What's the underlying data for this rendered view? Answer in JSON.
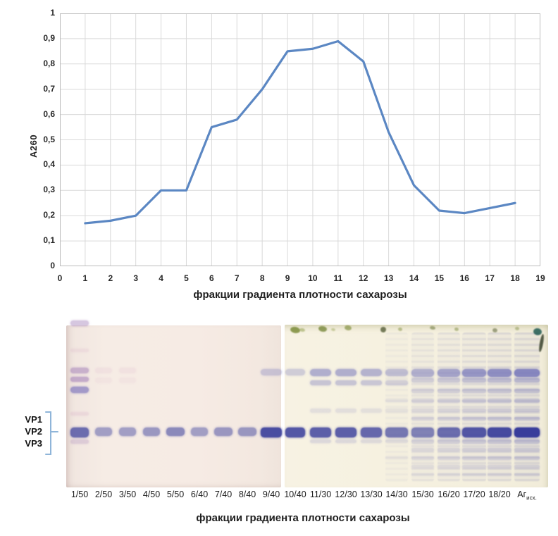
{
  "chart_data": {
    "type": "line",
    "x": [
      1,
      2,
      3,
      4,
      5,
      6,
      7,
      8,
      9,
      10,
      11,
      12,
      13,
      14,
      15,
      16,
      17,
      18
    ],
    "values": [
      0.17,
      0.18,
      0.2,
      0.3,
      0.3,
      0.55,
      0.58,
      0.7,
      0.85,
      0.86,
      0.89,
      0.81,
      0.53,
      0.32,
      0.22,
      0.21,
      0.23,
      0.25
    ],
    "title": "",
    "xlabel": "фракции градиента плотности сахарозы",
    "ylabel": "A260",
    "xlim": [
      0,
      19
    ],
    "ylim": [
      0,
      1
    ],
    "x_tick_labels": [
      "0",
      "1",
      "2",
      "3",
      "4",
      "5",
      "6",
      "7",
      "8",
      "9",
      "10",
      "11",
      "12",
      "13",
      "14",
      "15",
      "16",
      "17",
      "18",
      "19"
    ],
    "y_tick_labels": [
      "0",
      "0,1",
      "0,2",
      "0,3",
      "0,4",
      "0,5",
      "0,6",
      "0,7",
      "0,8",
      "0,9",
      "1"
    ],
    "decimal_separator": ",",
    "grid": true,
    "legend": "none",
    "line_color": "#5b87c3",
    "gridline_color": "#d9d9d9"
  },
  "gel": {
    "vp_labels": [
      "VP1",
      "VP2",
      "VP3"
    ],
    "caption": "фракции градиента плотности сахарозы",
    "lanes": [
      {
        "label": "1/50",
        "pattern": "main+extras",
        "intensity": 0.8
      },
      {
        "label": "2/50",
        "pattern": "main+pink",
        "intensity": 0.55
      },
      {
        "label": "3/50",
        "pattern": "main+pink",
        "intensity": 0.55
      },
      {
        "label": "4/50",
        "pattern": "main",
        "intensity": 0.6
      },
      {
        "label": "5/50",
        "pattern": "main",
        "intensity": 0.7
      },
      {
        "label": "6/40",
        "pattern": "main",
        "intensity": 0.55
      },
      {
        "label": "7/40",
        "pattern": "main",
        "intensity": 0.6
      },
      {
        "label": "8/40",
        "pattern": "main",
        "intensity": 0.6
      },
      {
        "label": "9/40",
        "pattern": "main+upper",
        "intensity": 0.95
      },
      {
        "label": "10/40",
        "pattern": "main+upper",
        "intensity": 0.9
      },
      {
        "label": "11/30",
        "pattern": "main+upper2",
        "intensity": 0.85
      },
      {
        "label": "12/30",
        "pattern": "main+upper2",
        "intensity": 0.85
      },
      {
        "label": "13/30",
        "pattern": "main+upper2",
        "intensity": 0.8
      },
      {
        "label": "14/30",
        "pattern": "main+ladder",
        "intensity": 0.7
      },
      {
        "label": "15/30",
        "pattern": "ladder",
        "intensity": 0.6
      },
      {
        "label": "16/20",
        "pattern": "ladder",
        "intensity": 0.72
      },
      {
        "label": "17/20",
        "pattern": "ladder",
        "intensity": 0.85
      },
      {
        "label": "18/20",
        "pattern": "ladder",
        "intensity": 0.92
      },
      {
        "label": "Аг",
        "sub": "исх.",
        "pattern": "ladder",
        "intensity": 1.0
      }
    ]
  }
}
